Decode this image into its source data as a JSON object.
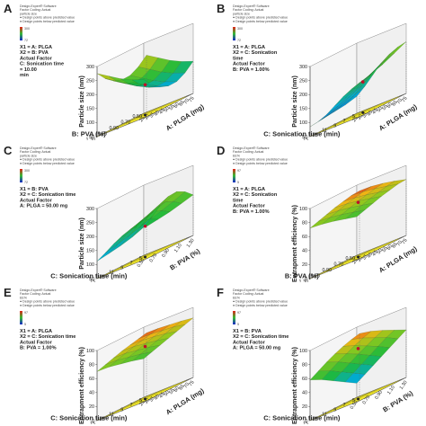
{
  "chart_data": [
    {
      "type": "surface",
      "panel_label": "A",
      "header_lines": [
        "Design-Expert® Software",
        "Factor Coding: Actual",
        "particle size",
        "● Design points above predicted value",
        "● Design points below predicted value"
      ],
      "legend_max": "300",
      "legend_min": "72",
      "factor_lines": [
        "X1 = A: PLGA",
        "X2 = B: PVA",
        "Actual Factor",
        "C: Sonication time",
        "= 10.00",
        "min"
      ],
      "zlabel": "Particle size (nm)",
      "zticks": [
        "50",
        "100",
        "150",
        "200",
        "250",
        "300"
      ],
      "xlabel": "A: PLGA (mg)",
      "xticks": [
        "25",
        "30",
        "35",
        "40",
        "45",
        "50",
        "55",
        "60",
        "65",
        "70",
        "75"
      ],
      "ylabel": "B: PVA (%)",
      "yticks": [
        "0.50",
        "0.70",
        "0.90",
        "1.10",
        "1.30"
      ],
      "zlim": [
        50,
        300
      ],
      "grid": [
        [
          170,
          140,
          120,
          112,
          116,
          135,
          165
        ],
        [
          190,
          160,
          140,
          132,
          136,
          155,
          185
        ],
        [
          215,
          185,
          165,
          157,
          161,
          180,
          210
        ],
        [
          245,
          215,
          195,
          187,
          191,
          210,
          240
        ],
        [
          275,
          245,
          225,
          217,
          221,
          240,
          270
        ]
      ],
      "design_points": [
        [
          0.5,
          0.5,
          158
        ]
      ]
    },
    {
      "type": "surface",
      "panel_label": "B",
      "header_lines": [
        "Design-Expert® Software",
        "Factor Coding: Actual",
        "particle size",
        "● Design points above predicted value",
        "● Design points below predicted value"
      ],
      "legend_max": "300",
      "legend_min": "72",
      "factor_lines": [
        "X1 = A: PLGA",
        "X2 = C: Sonication",
        "time",
        "Actual Factor",
        "B: PVA = 1.00%"
      ],
      "zlabel": "Particle size (nm)",
      "zticks": [
        "50",
        "100",
        "150",
        "200",
        "250",
        "300"
      ],
      "xlabel": "A: PLGA (mg)",
      "xticks": [
        "25",
        "30",
        "35",
        "40",
        "45",
        "50",
        "55",
        "60",
        "65",
        "70",
        "75"
      ],
      "ylabel": "C: Sonication time (min)",
      "yticks": [
        "5",
        "7",
        "9",
        "11",
        "13",
        "15"
      ],
      "zlim": [
        50,
        300
      ],
      "grid": [
        [
          110,
          135,
          165,
          195,
          215,
          228,
          235
        ],
        [
          100,
          120,
          145,
          170,
          190,
          205,
          215
        ],
        [
          95,
          108,
          128,
          150,
          170,
          185,
          196
        ],
        [
          90,
          98,
          115,
          135,
          155,
          170,
          182
        ],
        [
          85,
          92,
          105,
          125,
          145,
          160,
          172
        ]
      ],
      "design_points": [
        [
          0.5,
          0.4,
          160
        ]
      ]
    },
    {
      "type": "surface",
      "panel_label": "C",
      "header_lines": [
        "Design-Expert® Software",
        "Factor Coding: Actual",
        "particle size",
        "● Design points above predicted value",
        "● Design points below predicted value"
      ],
      "legend_max": "300",
      "legend_min": "72",
      "factor_lines": [
        "X1 = B: PVA",
        "X2 = C: Sonication time",
        "Actual Factor",
        "A: PLGA = 50.00 mg"
      ],
      "zlabel": "Particle size (nm)",
      "zticks": [
        "50",
        "100",
        "150",
        "200",
        "250",
        "300"
      ],
      "xlabel": "B: PVA (%)",
      "xticks": [
        "0.50",
        "0.70",
        "0.90",
        "1.10",
        "1.30"
      ],
      "ylabel": "C: Sonication time (min)",
      "yticks": [
        "5",
        "7",
        "9",
        "11",
        "13",
        "15"
      ],
      "zlim": [
        50,
        300
      ],
      "grid": [
        [
          150,
          175,
          205,
          225,
          230,
          218,
          195
        ],
        [
          135,
          160,
          188,
          208,
          214,
          204,
          185
        ],
        [
          125,
          148,
          172,
          192,
          200,
          192,
          176
        ],
        [
          118,
          138,
          160,
          178,
          188,
          182,
          170
        ],
        [
          112,
          130,
          150,
          166,
          178,
          174,
          165
        ]
      ],
      "design_points": [
        [
          0.5,
          0.5,
          160
        ]
      ]
    },
    {
      "type": "surface",
      "panel_label": "D",
      "header_lines": [
        "Design-Expert® Software",
        "Factor Coding: Actual",
        "EE%",
        "● Design points above predicted value",
        "● Design points below predicted value"
      ],
      "legend_max": "97",
      "legend_min": "5",
      "factor_lines": [
        "X1 = A: PLGA",
        "X2 = C: Sonication",
        "time",
        "Actual Factor",
        "B: PVA = 1.00%"
      ],
      "zlabel": "Entrapment efficiency (%)",
      "zticks": [
        "0",
        "20",
        "40",
        "60",
        "80",
        "100"
      ],
      "xlabel": "A: PLGA (mg)",
      "xticks": [
        "25",
        "30",
        "35",
        "40",
        "45",
        "50",
        "55",
        "60",
        "65",
        "70",
        "75"
      ],
      "ylabel": "B: PVA (%)",
      "yticks": [
        "0.50",
        "0.70",
        "0.90",
        "1.10",
        "1.30"
      ],
      "zlim": [
        0,
        100
      ],
      "grid": [
        [
          55,
          60,
          65,
          70,
          74,
          78,
          80
        ],
        [
          60,
          65,
          70,
          75,
          79,
          83,
          86
        ],
        [
          65,
          70,
          75,
          80,
          84,
          88,
          91
        ],
        [
          69,
          74,
          79,
          84,
          88,
          92,
          95
        ],
        [
          72,
          77,
          82,
          87,
          91,
          95,
          97
        ]
      ],
      "design_points": [
        [
          0.5,
          0.5,
          78
        ]
      ]
    },
    {
      "type": "surface",
      "panel_label": "E",
      "header_lines": [
        "Design-Expert® Software",
        "Factor Coding: Actual",
        "EE%",
        "● Design points above predicted value",
        "● Design points below predicted value"
      ],
      "legend_max": "97",
      "legend_min": "5",
      "factor_lines": [
        "X1 = A: PLGA",
        "X2 = C: Sonication time",
        "Actual Factor",
        "B: PVA = 1.00%"
      ],
      "zlabel": "Entrapment efficiency (%)",
      "zticks": [
        "0",
        "20",
        "40",
        "60",
        "80",
        "100"
      ],
      "xlabel": "A: PLGA (mg)",
      "xticks": [
        "25",
        "30",
        "35",
        "40",
        "45",
        "50",
        "55",
        "60",
        "65",
        "70",
        "75"
      ],
      "ylabel": "C: Sonication time (min)",
      "yticks": [
        "5",
        "7",
        "9",
        "11",
        "13",
        "15"
      ],
      "zlim": [
        0,
        100
      ],
      "grid": [
        [
          55,
          60,
          65,
          70,
          75,
          80,
          85
        ],
        [
          60,
          65,
          70,
          75,
          80,
          85,
          89
        ],
        [
          64,
          69,
          74,
          79,
          84,
          88,
          92
        ],
        [
          68,
          73,
          78,
          83,
          87,
          91,
          95
        ],
        [
          70,
          75,
          80,
          85,
          89,
          93,
          97
        ]
      ],
      "design_points": [
        [
          0.5,
          0.5,
          75
        ]
      ]
    },
    {
      "type": "surface",
      "panel_label": "F",
      "header_lines": [
        "Design-Expert® Software",
        "Factor Coding: Actual",
        "EE%",
        "● Design points above predicted value",
        "● Design points below predicted value"
      ],
      "legend_max": "97",
      "legend_min": "5",
      "factor_lines": [
        "X1 = B: PVA",
        "X2 = C: Sonication time",
        "Actual Factor",
        "A: PLGA = 50.00 mg"
      ],
      "zlabel": "Entrapment efficiency (%)",
      "zticks": [
        "0",
        "20",
        "40",
        "60",
        "80",
        "100"
      ],
      "xlabel": "B: PVA (%)",
      "xticks": [
        "0.50",
        "0.70",
        "0.90",
        "1.10",
        "1.30"
      ],
      "ylabel": "C: Sonication time (min)",
      "yticks": [
        "5",
        "7",
        "9",
        "11",
        "13",
        "15"
      ],
      "zlim": [
        0,
        100
      ],
      "grid": [
        [
          20,
          28,
          36,
          44,
          52,
          60,
          68
        ],
        [
          30,
          38,
          46,
          54,
          62,
          70,
          76
        ],
        [
          40,
          48,
          56,
          64,
          71,
          78,
          84
        ],
        [
          50,
          58,
          66,
          73,
          80,
          86,
          91
        ],
        [
          58,
          66,
          74,
          81,
          87,
          92,
          96
        ]
      ],
      "design_points": [
        [
          0.5,
          0.5,
          72
        ]
      ]
    }
  ]
}
